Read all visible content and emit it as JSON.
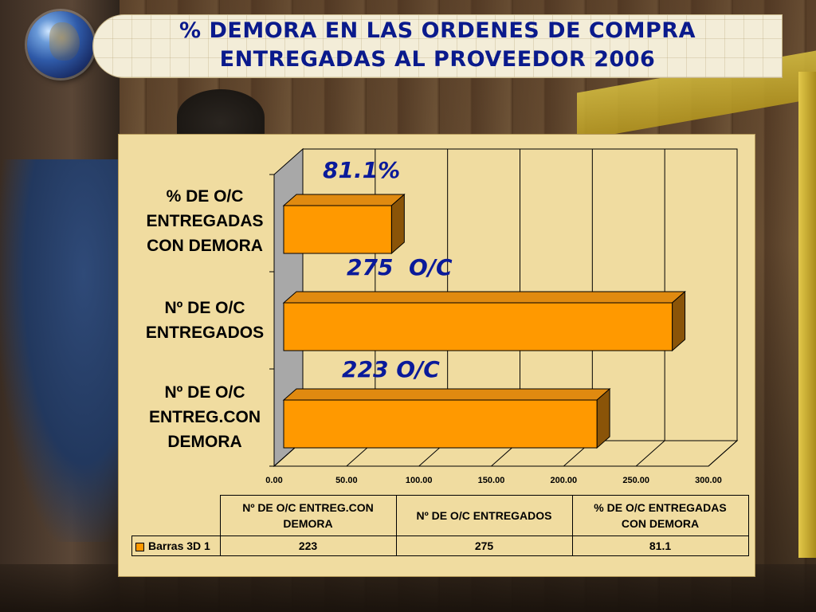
{
  "title": {
    "line1": "% DEMORA EN LAS  ORDENES DE COMPRA",
    "line2": "ENTREGADAS AL PROVEEDOR 2006"
  },
  "chart_data": {
    "type": "bar",
    "orientation": "horizontal",
    "categories": [
      "Nº DE O/C ENTREG.CON DEMORA",
      "Nº DE O/C ENTREGADOS",
      "% DE O/C ENTREGADAS CON DEMORA"
    ],
    "category_display": [
      [
        "Nº DE O/C",
        "ENTREG.CON",
        "DEMORA"
      ],
      [
        "Nº DE O/C",
        "ENTREGADOS"
      ],
      [
        "% DE O/C",
        "ENTREGADAS",
        "CON DEMORA"
      ]
    ],
    "series": [
      {
        "name": "Barras 3D 1",
        "values": [
          223,
          275,
          81.1
        ],
        "color": "#ff9900"
      }
    ],
    "xlim": [
      0,
      300
    ],
    "xticks": [
      "0.00",
      "50.00",
      "100.00",
      "150.00",
      "200.00",
      "250.00",
      "300.00"
    ],
    "grid": true,
    "legend": "in data table",
    "annotations": [
      "223 O/C",
      "275  O/C",
      "81.1%"
    ],
    "data_table": {
      "headers": [
        "Nº DE O/C ENTREG.CON DEMORA",
        "Nº DE O/C ENTREGADOS",
        "% DE O/C ENTREGADAS CON DEMORA"
      ],
      "header_display": [
        [
          "Nº DE O/C ENTREG.CON",
          "DEMORA"
        ],
        [
          "Nº DE O/C ENTREGADOS"
        ],
        [
          "% DE O/C ENTREGADAS",
          "CON DEMORA"
        ]
      ],
      "row_label": "Barras 3D 1",
      "values": [
        "223",
        "275",
        "81.1"
      ]
    }
  },
  "colors": {
    "bar_front": "#ff9900",
    "bar_top": "#e08a10",
    "bar_side": "#8a5408",
    "panel": "#f0dca0",
    "title_text": "#0a1a8c",
    "annotation_text": "#0a1a9a"
  }
}
